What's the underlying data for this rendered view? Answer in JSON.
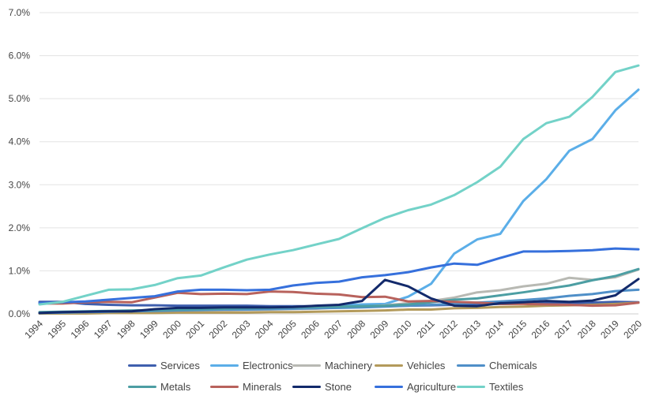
{
  "chart_data": {
    "type": "line",
    "title": "",
    "xlabel": "",
    "ylabel": "",
    "ylim": [
      0,
      0.07
    ],
    "yticks": [
      "0.0%",
      "1.0%",
      "2.0%",
      "3.0%",
      "4.0%",
      "5.0%",
      "6.0%",
      "7.0%"
    ],
    "grid": "horizontal",
    "legend_position": "bottom",
    "categories": [
      "1994",
      "1995",
      "1996",
      "1997",
      "1998",
      "1999",
      "2000",
      "2001",
      "2002",
      "2003",
      "2004",
      "2005",
      "2006",
      "2007",
      "2008",
      "2009",
      "2010",
      "2011",
      "2012",
      "2013",
      "2014",
      "2015",
      "2016",
      "2017",
      "2018",
      "2019",
      "2020"
    ],
    "series": [
      {
        "name": "Services",
        "color": "#3f5fae",
        "values": [
          0.0028,
          0.0028,
          0.0023,
          0.0021,
          0.002,
          0.002,
          0.0019,
          0.0019,
          0.0019,
          0.0019,
          0.0018,
          0.0018,
          0.0018,
          0.0018,
          0.0018,
          0.0018,
          0.0019,
          0.002,
          0.0021,
          0.0022,
          0.0023,
          0.0024,
          0.0025,
          0.0025,
          0.0026,
          0.0028,
          0.0027
        ]
      },
      {
        "name": "Electronics",
        "color": "#5baee8",
        "values": [
          0.0003,
          0.0004,
          0.0004,
          0.0005,
          0.0006,
          0.0007,
          0.001,
          0.0012,
          0.0013,
          0.0014,
          0.0015,
          0.0016,
          0.0018,
          0.002,
          0.0022,
          0.0023,
          0.004,
          0.007,
          0.014,
          0.0173,
          0.0186,
          0.0262,
          0.0313,
          0.0379,
          0.0406,
          0.0473,
          0.0521
        ]
      },
      {
        "name": "Machinery",
        "color": "#b8b9b3",
        "values": [
          0.0002,
          0.0002,
          0.0003,
          0.0003,
          0.0004,
          0.0005,
          0.0006,
          0.0007,
          0.0008,
          0.0009,
          0.001,
          0.0011,
          0.0012,
          0.0015,
          0.0017,
          0.002,
          0.0025,
          0.003,
          0.0038,
          0.005,
          0.0055,
          0.0064,
          0.007,
          0.0084,
          0.0079,
          0.0085,
          0.0103
        ]
      },
      {
        "name": "Vehicles",
        "color": "#b39a5b",
        "values": [
          0.0001,
          0.0001,
          0.0001,
          0.0002,
          0.0002,
          0.0002,
          0.0003,
          0.0003,
          0.0003,
          0.0003,
          0.0004,
          0.0004,
          0.0005,
          0.0006,
          0.0007,
          0.0008,
          0.001,
          0.001,
          0.0013,
          0.0014,
          0.0016,
          0.0017,
          0.0019,
          0.002,
          0.0021,
          0.0023,
          0.0026
        ]
      },
      {
        "name": "Chemicals",
        "color": "#4f8fc8",
        "values": [
          0.0002,
          0.0003,
          0.0004,
          0.0005,
          0.0006,
          0.0007,
          0.0008,
          0.0009,
          0.001,
          0.001,
          0.0011,
          0.0012,
          0.0013,
          0.0014,
          0.0015,
          0.0017,
          0.0019,
          0.0021,
          0.0023,
          0.0026,
          0.0029,
          0.0032,
          0.0036,
          0.0042,
          0.0046,
          0.0053,
          0.0056
        ]
      },
      {
        "name": "Metals",
        "color": "#4c9ea3",
        "values": [
          0.0004,
          0.0005,
          0.0006,
          0.0007,
          0.0008,
          0.0009,
          0.001,
          0.0011,
          0.0012,
          0.0013,
          0.0014,
          0.0015,
          0.0016,
          0.0017,
          0.0018,
          0.0019,
          0.0022,
          0.0027,
          0.0033,
          0.0036,
          0.0043,
          0.005,
          0.0058,
          0.0066,
          0.0078,
          0.0088,
          0.0104
        ]
      },
      {
        "name": "Minerals",
        "color": "#b8625c",
        "values": [
          0.0024,
          0.0024,
          0.0027,
          0.0028,
          0.0027,
          0.0038,
          0.0049,
          0.0046,
          0.0047,
          0.0046,
          0.0052,
          0.0051,
          0.0047,
          0.0045,
          0.0039,
          0.004,
          0.0029,
          0.003,
          0.0028,
          0.0026,
          0.0023,
          0.0023,
          0.0022,
          0.0021,
          0.0019,
          0.002,
          0.0026
        ]
      },
      {
        "name": "Stone",
        "color": "#132a6b",
        "values": [
          0.0002,
          0.0004,
          0.0005,
          0.0006,
          0.0006,
          0.0011,
          0.0014,
          0.0014,
          0.0015,
          0.0015,
          0.0015,
          0.0016,
          0.0019,
          0.0021,
          0.003,
          0.0079,
          0.0064,
          0.0036,
          0.0019,
          0.0018,
          0.0025,
          0.0027,
          0.003,
          0.0028,
          0.0031,
          0.0043,
          0.0081
        ]
      },
      {
        "name": "Agriculture",
        "color": "#3670dc",
        "values": [
          0.0025,
          0.0027,
          0.0029,
          0.0033,
          0.0037,
          0.0041,
          0.0052,
          0.0056,
          0.0056,
          0.0055,
          0.0056,
          0.0066,
          0.0072,
          0.0075,
          0.0085,
          0.009,
          0.0097,
          0.0108,
          0.0117,
          0.0114,
          0.013,
          0.0145,
          0.0145,
          0.0146,
          0.0148,
          0.0152,
          0.015
        ]
      },
      {
        "name": "Textiles",
        "color": "#73d2c8",
        "values": [
          0.0022,
          0.0028,
          0.0042,
          0.0056,
          0.0057,
          0.0067,
          0.0083,
          0.0089,
          0.0108,
          0.0126,
          0.0138,
          0.0148,
          0.0161,
          0.0174,
          0.0199,
          0.0223,
          0.0241,
          0.0254,
          0.0276,
          0.0306,
          0.0342,
          0.0406,
          0.0443,
          0.0458,
          0.0504,
          0.0562,
          0.0577
        ]
      }
    ]
  }
}
